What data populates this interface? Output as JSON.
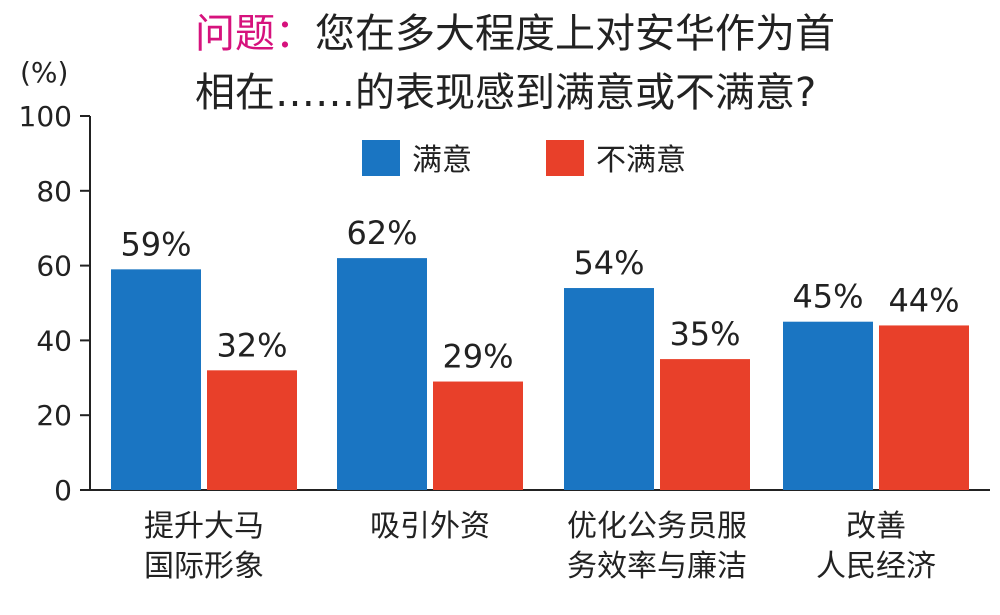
{
  "chart_data": {
    "type": "bar",
    "title_prefix": "问题：",
    "title_line1": "您在多大程度上对安华作为首",
    "title_line2": "相在……的表现感到满意或不满意?",
    "ylabel": "(%)",
    "ylim": [
      0,
      100
    ],
    "yticks": [
      0,
      20,
      40,
      60,
      80,
      100
    ],
    "grid": false,
    "legend_position": "top-center",
    "categories": [
      [
        "提升大马",
        "国际形象"
      ],
      [
        "吸引外资"
      ],
      [
        "优化公务员服",
        "务效率与廉洁"
      ],
      [
        "改善",
        "人民经济"
      ]
    ],
    "series": [
      {
        "name": "满意",
        "color": "#1a75c2",
        "values": [
          59,
          62,
          54,
          45
        ],
        "labels": [
          "59%",
          "62%",
          "54%",
          "45%"
        ]
      },
      {
        "name": "不满意",
        "color": "#e8402a",
        "values": [
          32,
          29,
          35,
          44
        ],
        "labels": [
          "32%",
          "29%",
          "35%",
          "44%"
        ]
      }
    ],
    "title_prefix_color": "#d6127d"
  }
}
